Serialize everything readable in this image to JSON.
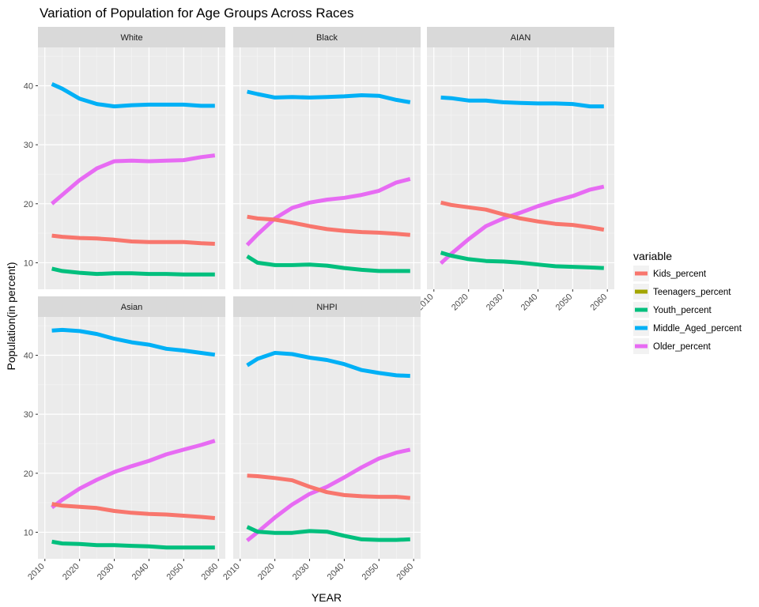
{
  "chart_data": {
    "type": "line",
    "title": "Variation of Population for Age Groups Across Races",
    "xlabel": "YEAR",
    "ylabel": "Population(in percent)",
    "xlim": [
      2010,
      2060
    ],
    "ylim": [
      5.5,
      46.5
    ],
    "x_ticks": [
      2010,
      2020,
      2030,
      2040,
      2050,
      2060
    ],
    "y_ticks": [
      10,
      20,
      30,
      40
    ],
    "grid": true,
    "legend_position": "right",
    "legend": {
      "title": "variable",
      "items": [
        {
          "name": "Kids_percent",
          "color": "#F8766D"
        },
        {
          "name": "Teenagers_percent",
          "color": "#A3A500"
        },
        {
          "name": "Youth_percent",
          "color": "#00BF7D"
        },
        {
          "name": "Middle_Aged_percent",
          "color": "#00B0F6"
        },
        {
          "name": "Older_percent",
          "color": "#E76BF3"
        }
      ]
    },
    "panels": [
      {
        "facet": "White",
        "x": [
          2012,
          2015,
          2020,
          2025,
          2030,
          2035,
          2040,
          2045,
          2050,
          2055,
          2059
        ],
        "series": [
          {
            "name": "Middle_Aged_percent",
            "values": [
              40.3,
              39.5,
              37.8,
              36.9,
              36.5,
              36.7,
              36.8,
              36.8,
              36.8,
              36.6,
              36.6
            ]
          },
          {
            "name": "Older_percent",
            "values": [
              20.0,
              21.5,
              24.0,
              26.0,
              27.2,
              27.3,
              27.2,
              27.3,
              27.4,
              27.9,
              28.2
            ]
          },
          {
            "name": "Kids_percent",
            "values": [
              14.6,
              14.4,
              14.2,
              14.1,
              13.9,
              13.6,
              13.5,
              13.5,
              13.5,
              13.3,
              13.2
            ]
          },
          {
            "name": "Youth_percent",
            "values": [
              9.0,
              8.6,
              8.3,
              8.1,
              8.2,
              8.2,
              8.1,
              8.1,
              8.0,
              8.0,
              8.0
            ]
          }
        ]
      },
      {
        "facet": "Black",
        "x": [
          2012,
          2015,
          2020,
          2025,
          2030,
          2035,
          2040,
          2045,
          2050,
          2055,
          2059
        ],
        "series": [
          {
            "name": "Middle_Aged_percent",
            "values": [
              39.0,
              38.6,
              38.0,
              38.1,
              38.0,
              38.1,
              38.2,
              38.4,
              38.3,
              37.6,
              37.2
            ]
          },
          {
            "name": "Older_percent",
            "values": [
              13.0,
              14.8,
              17.5,
              19.3,
              20.2,
              20.7,
              21.0,
              21.5,
              22.2,
              23.6,
              24.2
            ]
          },
          {
            "name": "Kids_percent",
            "values": [
              17.8,
              17.5,
              17.3,
              16.8,
              16.2,
              15.7,
              15.4,
              15.2,
              15.1,
              14.9,
              14.7
            ]
          },
          {
            "name": "Youth_percent",
            "values": [
              11.1,
              10.0,
              9.6,
              9.6,
              9.7,
              9.5,
              9.1,
              8.8,
              8.6,
              8.6,
              8.6
            ]
          }
        ]
      },
      {
        "facet": "AIAN",
        "x": [
          2012,
          2015,
          2020,
          2025,
          2030,
          2035,
          2040,
          2045,
          2050,
          2055,
          2059
        ],
        "series": [
          {
            "name": "Middle_Aged_percent",
            "values": [
              38.0,
              37.9,
              37.5,
              37.5,
              37.2,
              37.1,
              37.0,
              37.0,
              36.9,
              36.5,
              36.5
            ]
          },
          {
            "name": "Older_percent",
            "values": [
              9.9,
              11.5,
              14.0,
              16.2,
              17.5,
              18.5,
              19.6,
              20.5,
              21.3,
              22.4,
              22.9
            ]
          },
          {
            "name": "Kids_percent",
            "values": [
              20.2,
              19.8,
              19.4,
              19.0,
              18.2,
              17.5,
              17.0,
              16.6,
              16.4,
              16.0,
              15.6
            ]
          },
          {
            "name": "Youth_percent",
            "values": [
              11.7,
              11.2,
              10.6,
              10.3,
              10.2,
              10.0,
              9.7,
              9.4,
              9.3,
              9.2,
              9.1
            ]
          }
        ]
      },
      {
        "facet": "Asian",
        "x": [
          2012,
          2015,
          2020,
          2025,
          2030,
          2035,
          2040,
          2045,
          2050,
          2055,
          2059
        ],
        "series": [
          {
            "name": "Middle_Aged_percent",
            "values": [
              44.2,
              44.3,
              44.1,
              43.6,
              42.8,
              42.2,
              41.8,
              41.1,
              40.8,
              40.4,
              40.1
            ]
          },
          {
            "name": "Older_percent",
            "values": [
              14.2,
              15.5,
              17.4,
              18.9,
              20.2,
              21.2,
              22.1,
              23.2,
              24.0,
              24.8,
              25.5
            ]
          },
          {
            "name": "Kids_percent",
            "values": [
              14.8,
              14.5,
              14.3,
              14.1,
              13.6,
              13.3,
              13.1,
              13.0,
              12.8,
              12.6,
              12.4
            ]
          },
          {
            "name": "Youth_percent",
            "values": [
              8.4,
              8.1,
              8.0,
              7.8,
              7.8,
              7.7,
              7.6,
              7.4,
              7.4,
              7.4,
              7.4
            ]
          }
        ]
      },
      {
        "facet": "NHPI",
        "x": [
          2012,
          2015,
          2020,
          2025,
          2030,
          2035,
          2040,
          2045,
          2050,
          2055,
          2059
        ],
        "series": [
          {
            "name": "Middle_Aged_percent",
            "values": [
              38.3,
              39.4,
              40.4,
              40.2,
              39.6,
              39.2,
              38.5,
              37.5,
              37.0,
              36.6,
              36.5
            ]
          },
          {
            "name": "Older_percent",
            "values": [
              8.6,
              10.0,
              12.5,
              14.7,
              16.5,
              17.7,
              19.3,
              21.0,
              22.5,
              23.5,
              24.0
            ]
          },
          {
            "name": "Kids_percent",
            "values": [
              19.6,
              19.5,
              19.2,
              18.8,
              17.7,
              16.8,
              16.3,
              16.1,
              16.0,
              16.0,
              15.8
            ]
          },
          {
            "name": "Youth_percent",
            "values": [
              10.9,
              10.1,
              9.9,
              9.9,
              10.2,
              10.1,
              9.4,
              8.8,
              8.7,
              8.7,
              8.8
            ]
          }
        ]
      }
    ]
  }
}
